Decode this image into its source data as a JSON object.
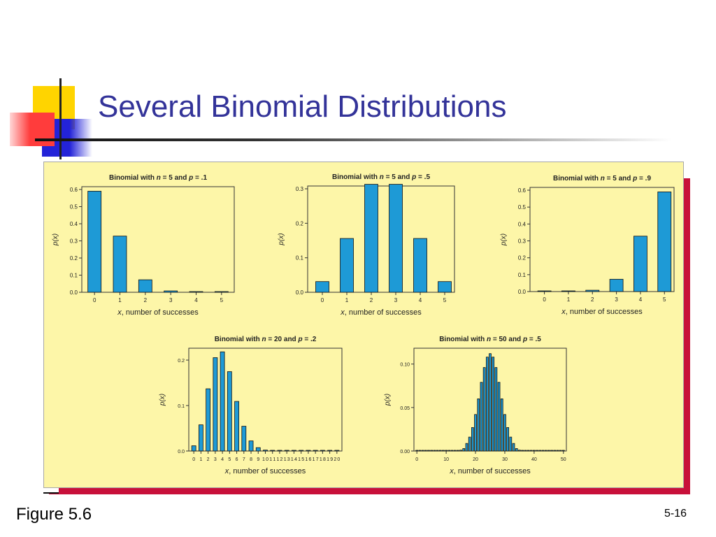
{
  "slide": {
    "title": "Several Binomial Distributions",
    "figure_label": "Figure 5.6",
    "page_number": "5-16"
  },
  "colors": {
    "title": "#333399",
    "panel_background": "#fdf6a8",
    "panel_shadow": "#c8103a",
    "bar_fill": "#1e9ad6",
    "accent_yellow": "#ffd400",
    "accent_blue": "#2323d8",
    "accent_red": "#ff3c3c"
  },
  "chart_data": [
    {
      "type": "bar",
      "title_prefix": "Binomial with ",
      "title_n": "n",
      "title_mid": " = 5 and ",
      "title_p": "p",
      "title_suffix": " = .1",
      "xlabel_var": "x",
      "xlabel_rest": ", number of successes",
      "ylabel": "p(x)",
      "ylim": [
        0,
        0.6
      ],
      "yticks": [
        "0.0",
        "0.1",
        "0.2",
        "0.3",
        "0.4",
        "0.5",
        "0.6"
      ],
      "xticks": [
        "0",
        "1",
        "2",
        "3",
        "4",
        "5"
      ],
      "x": [
        0,
        1,
        2,
        3,
        4,
        5
      ],
      "values": [
        0.59,
        0.328,
        0.073,
        0.008,
        0.0005,
        1e-05
      ]
    },
    {
      "type": "bar",
      "title_prefix": "Binomial with ",
      "title_n": "n",
      "title_mid": " = 5 and ",
      "title_p": "p",
      "title_suffix": " = .5",
      "xlabel_var": "x",
      "xlabel_rest": ", number of successes",
      "ylabel": "p(x)",
      "ylim": [
        0,
        0.3
      ],
      "yticks": [
        "0.0",
        "0.1",
        "0.2",
        "0.3"
      ],
      "xticks": [
        "0",
        "1",
        "2",
        "3",
        "4",
        "5"
      ],
      "x": [
        0,
        1,
        2,
        3,
        4,
        5
      ],
      "values": [
        0.031,
        0.156,
        0.313,
        0.313,
        0.156,
        0.031
      ]
    },
    {
      "type": "bar",
      "title_prefix": "Binomial with ",
      "title_n": "n",
      "title_mid": " = 5 and ",
      "title_p": "p",
      "title_suffix": " = .9",
      "xlabel_var": "x",
      "xlabel_rest": ", number of successes",
      "ylabel": "p(x)",
      "ylim": [
        0,
        0.6
      ],
      "yticks": [
        "0.0",
        "0.1",
        "0.2",
        "0.3",
        "0.4",
        "0.5",
        "0.6"
      ],
      "xticks": [
        "0",
        "1",
        "2",
        "3",
        "4",
        "5"
      ],
      "x": [
        0,
        1,
        2,
        3,
        4,
        5
      ],
      "values": [
        1e-05,
        0.0005,
        0.008,
        0.073,
        0.328,
        0.59
      ]
    },
    {
      "type": "bar",
      "title_prefix": "Binomial with ",
      "title_n": "n",
      "title_mid": " = 20 and ",
      "title_p": "p",
      "title_suffix": " = .2",
      "xlabel_var": "x",
      "xlabel_rest": ", number of successes",
      "ylabel": "p(x)",
      "ylim": [
        0,
        0.22
      ],
      "yticks": [
        "0.0",
        "0.1",
        "0.2"
      ],
      "xticks": [
        "0",
        "1",
        "2",
        "3",
        "4",
        "5",
        "6",
        "7",
        "8",
        "9",
        "10",
        "11",
        "12",
        "13",
        "14",
        "15",
        "16",
        "17",
        "18",
        "19",
        "20"
      ],
      "x": [
        0,
        1,
        2,
        3,
        4,
        5,
        6,
        7,
        8,
        9,
        10,
        11,
        12,
        13,
        14,
        15,
        16,
        17,
        18,
        19,
        20
      ],
      "values": [
        0.0115,
        0.0576,
        0.1369,
        0.2054,
        0.2182,
        0.1746,
        0.1091,
        0.0545,
        0.0222,
        0.0074,
        0.002,
        0.0005,
        0.0001,
        0,
        0,
        0,
        0,
        0,
        0,
        0,
        0
      ]
    },
    {
      "type": "bar",
      "title_prefix": "Binomial with ",
      "title_n": "n",
      "title_mid": " = 50 and ",
      "title_p": "p",
      "title_suffix": " = .5",
      "xlabel_var": "x",
      "xlabel_rest": ", number of successes",
      "ylabel": "p(x)",
      "ylim": [
        0,
        0.115
      ],
      "yticks": [
        "0.00",
        "0.05",
        "0.10"
      ],
      "xticks": [
        "0",
        "10",
        "20",
        "30",
        "40",
        "50"
      ],
      "x": [
        0,
        1,
        2,
        3,
        4,
        5,
        6,
        7,
        8,
        9,
        10,
        11,
        12,
        13,
        14,
        15,
        16,
        17,
        18,
        19,
        20,
        21,
        22,
        23,
        24,
        25,
        26,
        27,
        28,
        29,
        30,
        31,
        32,
        33,
        34,
        35,
        36,
        37,
        38,
        39,
        40,
        41,
        42,
        43,
        44,
        45,
        46,
        47,
        48,
        49,
        50
      ],
      "values": [
        0,
        0,
        0,
        0,
        0,
        0,
        0,
        0,
        0,
        0,
        0,
        0,
        0,
        0,
        0.0003,
        0.001,
        0.0028,
        0.0087,
        0.016,
        0.027,
        0.042,
        0.06,
        0.079,
        0.096,
        0.108,
        0.112,
        0.108,
        0.096,
        0.079,
        0.06,
        0.042,
        0.027,
        0.016,
        0.0087,
        0.0028,
        0.001,
        0.0003,
        0,
        0,
        0,
        0,
        0,
        0,
        0,
        0,
        0,
        0,
        0,
        0,
        0,
        0
      ]
    }
  ]
}
